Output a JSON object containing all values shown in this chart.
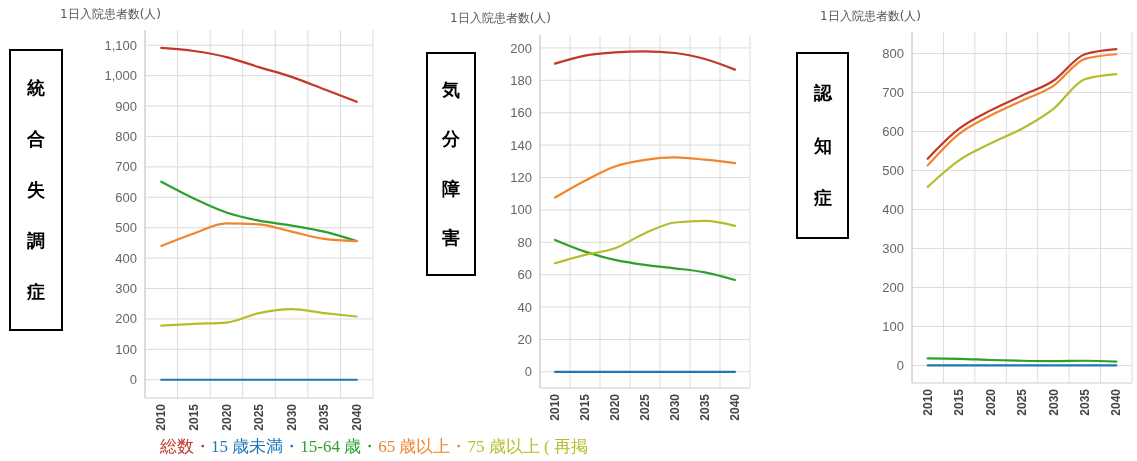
{
  "chart_data": [
    {
      "type": "line",
      "title": "統合失調症",
      "ylabel": "1日入院患者数(人)",
      "categories": [
        "2010",
        "2015",
        "2020",
        "2025",
        "2030",
        "2035",
        "2040"
      ],
      "ylim": [
        -60,
        1150
      ],
      "yticks": [
        0,
        100,
        200,
        300,
        400,
        500,
        600,
        700,
        800,
        900,
        {
          "value": 1000,
          "label": "1,000"
        },
        {
          "value": 1100,
          "label": "1,100"
        }
      ],
      "grid": true,
      "legend": "bottom",
      "series": [
        {
          "name": "総数・",
          "color": "#c0392b",
          "values": [
            1091,
            1081,
            1061,
            1028,
            996,
            955,
            914
          ]
        },
        {
          "name": "15 歳未満・",
          "color": "#1f77b4",
          "values": [
            0,
            0,
            0,
            0,
            0,
            0,
            0
          ]
        },
        {
          "name": "15-64 歳・",
          "color": "#2ca02c",
          "values": [
            651,
            596,
            550,
            523,
            507,
            487,
            456
          ]
        },
        {
          "name": "65 歳以上・",
          "color": "#f0852d",
          "values": [
            440,
            481,
            514,
            511,
            487,
            463,
            456
          ]
        },
        {
          "name": "75 歳以上 ( 再掲",
          "color": "#b5bd2c",
          "values": [
            178,
            184,
            188,
            219,
            232,
            219,
            208
          ]
        }
      ]
    },
    {
      "type": "line",
      "title": "気分障害",
      "ylabel": "1日入院患者数(人)",
      "categories": [
        "2010",
        "2015",
        "2020",
        "2025",
        "2030",
        "2035",
        "2040"
      ],
      "ylim": [
        -10,
        208
      ],
      "yticks": [
        0,
        20,
        40,
        60,
        80,
        100,
        120,
        140,
        160,
        180,
        200
      ],
      "grid": true,
      "series": [
        {
          "color": "#c0392b",
          "values": [
            190.3,
            195.3,
            197.3,
            197.9,
            196.9,
            193.2,
            186.6
          ]
        },
        {
          "color": "#1f77b4",
          "values": [
            0,
            0,
            0,
            0,
            0,
            0,
            0
          ]
        },
        {
          "color": "#2ca02c",
          "values": [
            81.4,
            74.2,
            69.1,
            66,
            63.9,
            61.4,
            56.7
          ]
        },
        {
          "color": "#f0852d",
          "values": [
            107.6,
            118,
            126.8,
            130.9,
            132.4,
            131,
            128.9
          ]
        },
        {
          "color": "#b5bd2c",
          "values": [
            67,
            72.2,
            76.3,
            85.6,
            92.2,
            93.2,
            90.1
          ]
        }
      ]
    },
    {
      "type": "line",
      "title": "認知症",
      "ylabel": "1日入院患者数(人)",
      "categories": [
        "2010",
        "2015",
        "2020",
        "2025",
        "2030",
        "2035",
        "2040"
      ],
      "ylim": [
        -45,
        855
      ],
      "yticks": [
        0,
        100,
        200,
        300,
        400,
        500,
        600,
        700,
        800
      ],
      "grid": true,
      "series": [
        {
          "color": "#c0392b",
          "values": [
            530,
            607,
            654,
            692,
            730,
            798,
            811
          ]
        },
        {
          "color": "#1f77b4",
          "values": [
            0,
            0,
            0,
            0,
            0,
            0,
            0
          ]
        },
        {
          "color": "#2ca02c",
          "values": [
            18,
            17,
            14,
            12,
            11,
            12,
            10
          ]
        },
        {
          "color": "#f0852d",
          "values": [
            513,
            594,
            641,
            679,
            717,
            786,
            798
          ]
        },
        {
          "color": "#b5bd2c",
          "values": [
            458,
            526,
            569,
            607,
            658,
            734,
            747
          ]
        }
      ]
    }
  ]
}
